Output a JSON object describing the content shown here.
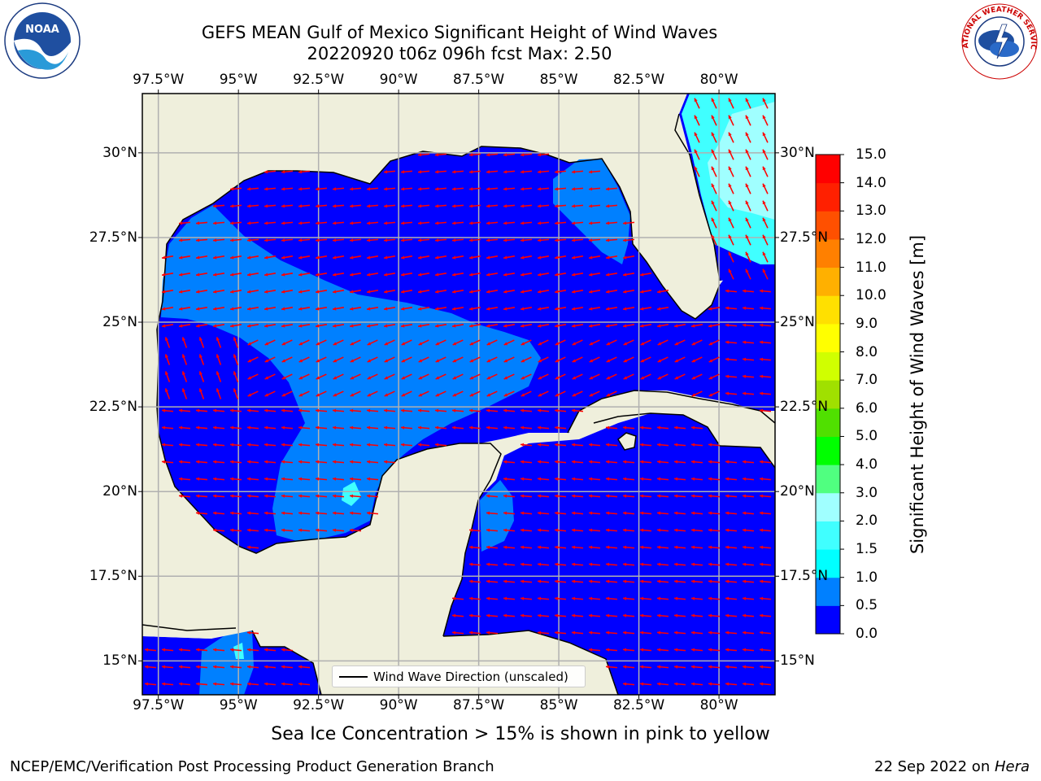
{
  "header": {
    "title_line1": "GEFS MEAN Gulf of Mexico Significant Height of Wind Waves",
    "title_line2": "20220920 t06z 096h fcst   Max: 2.50"
  },
  "axes": {
    "lon_labels": [
      "97.5°W",
      "95°W",
      "92.5°W",
      "90°W",
      "87.5°W",
      "85°W",
      "82.5°W",
      "80°W"
    ],
    "lon_values": [
      -97.5,
      -95,
      -92.5,
      -90,
      -87.5,
      -85,
      -82.5,
      -80
    ],
    "lat_labels": [
      "30°N",
      "27.5°N",
      "25°N",
      "22.5°N",
      "20°N",
      "17.5°N",
      "15°N"
    ],
    "lat_values": [
      30,
      27.5,
      25,
      22.5,
      20,
      17.5,
      15
    ],
    "lon_range": [
      -98,
      -78.25
    ],
    "lat_range": [
      14,
      31.75
    ],
    "grid": true
  },
  "colorbar": {
    "label": "Significant Height of Wind Waves [m]",
    "tick_labels": [
      "15.0",
      "14.0",
      "13.0",
      "12.0",
      "11.0",
      "10.0",
      "9.0",
      "8.0",
      "7.0",
      "6.0",
      "5.0",
      "4.0",
      "3.0",
      "2.0",
      "1.5",
      "1.0",
      "0.5",
      "0.0"
    ],
    "levels": [
      0.0,
      0.5,
      1.0,
      1.5,
      2.0,
      3.0,
      4.0,
      5.0,
      6.0,
      7.0,
      8.0,
      9.0,
      10.0,
      11.0,
      12.0,
      13.0,
      14.0,
      15.0
    ],
    "colors": [
      "#0000ff",
      "#0080ff",
      "#00ffff",
      "#40ffff",
      "#a0ffff",
      "#50ff80",
      "#00ff00",
      "#50e000",
      "#a0e000",
      "#d0ff00",
      "#ffff00",
      "#ffe000",
      "#ffb000",
      "#ff8000",
      "#ff5000",
      "#ff2000",
      "#ff0000"
    ]
  },
  "legend": {
    "label": "Wind Wave Direction (unscaled)"
  },
  "map_colors": {
    "land": "#efefdc",
    "ocean_low": "#0000ff",
    "ocean_mid": "#0080ff",
    "ocean_high": "#40ffff",
    "ocean_max": "#a0ffff",
    "vector": "#ff0000",
    "coast": "#000000",
    "grid": "#b0b0b0"
  },
  "footer": {
    "footnote": "Sea Ice Concentration > 15% is shown in pink to yellow",
    "credit": "NCEP/EMC/Verification Post Processing Product Generation Branch",
    "date_prefix": "22 Sep 2022 on ",
    "date_host": "Hera"
  },
  "logos": {
    "noaa_text": "NOAA",
    "nws_text": "NATIONAL WEATHER SERVICE"
  }
}
